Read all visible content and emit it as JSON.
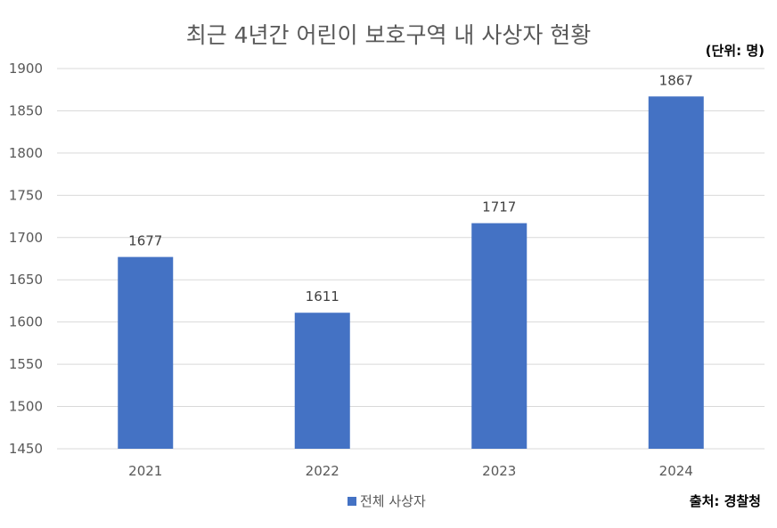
{
  "title": "최근 4년간 어린이 보호구역 내 사상자 현황",
  "unit_note": "(단위: 명)",
  "source_note": "출처: 경찰청",
  "colors": {
    "bar": "#4472C4",
    "grid": "#D9D9D9",
    "text": "#595959"
  },
  "chart_data": {
    "type": "bar",
    "categories": [
      "2021",
      "2022",
      "2023",
      "2024"
    ],
    "series": [
      {
        "name": "전체 사상자",
        "values": [
          1677,
          1611,
          1717,
          1867
        ]
      }
    ],
    "ylim": [
      1450,
      1900
    ],
    "yticks": [
      1450,
      1500,
      1550,
      1600,
      1650,
      1700,
      1750,
      1800,
      1850,
      1900
    ],
    "grid": true,
    "legend": "bottom",
    "xlabel": "",
    "ylabel": ""
  }
}
